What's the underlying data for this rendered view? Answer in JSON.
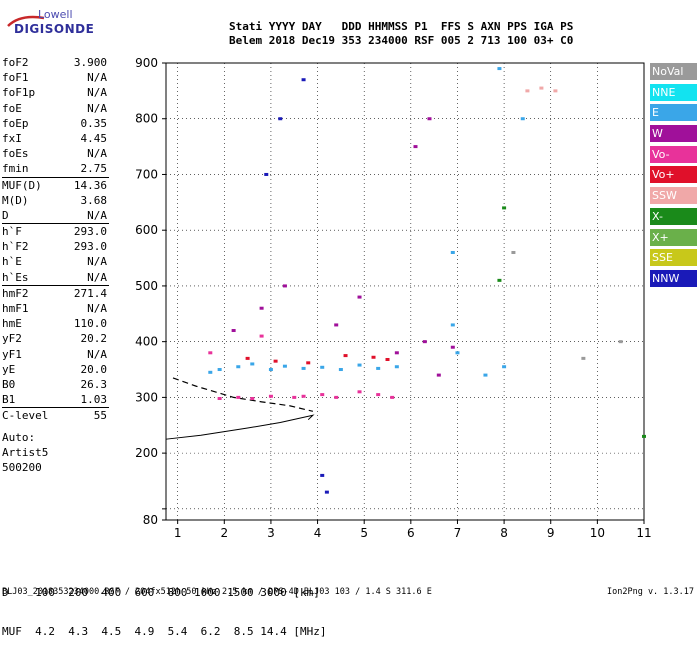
{
  "logo": {
    "top": "Lowell",
    "main": "DIGISONDE"
  },
  "header": {
    "line1": "Stati YYYY DAY   DDD HHMMSS P1  FFS S AXN PPS IGA PS",
    "line2": "Belem 2018 Dec19 353 234000 RSF 005 2 713 100 03+ C0"
  },
  "params": [
    {
      "label": "foF2",
      "value": "3.900"
    },
    {
      "label": "foF1",
      "value": "N/A"
    },
    {
      "label": "foF1p",
      "value": "N/A"
    },
    {
      "label": "foE",
      "value": "N/A"
    },
    {
      "label": "foEp",
      "value": "0.35"
    },
    {
      "label": "fxI",
      "value": "4.45"
    },
    {
      "label": "foEs",
      "value": "N/A"
    },
    {
      "label": "fmin",
      "value": "2.75"
    },
    {
      "label": "MUF(D)",
      "value": "14.36"
    },
    {
      "label": "M(D)",
      "value": "3.68"
    },
    {
      "label": "D",
      "value": "N/A"
    },
    {
      "label": "h`F",
      "value": "293.0"
    },
    {
      "label": "h`F2",
      "value": "293.0"
    },
    {
      "label": "h`E",
      "value": "N/A"
    },
    {
      "label": "h`Es",
      "value": "N/A"
    },
    {
      "label": "hmF2",
      "value": "271.4"
    },
    {
      "label": "hmF1",
      "value": "N/A"
    },
    {
      "label": "hmE",
      "value": "110.0"
    },
    {
      "label": "yF2",
      "value": "20.2"
    },
    {
      "label": "yF1",
      "value": "N/A"
    },
    {
      "label": "yE",
      "value": "20.0"
    },
    {
      "label": "B0",
      "value": "26.3"
    },
    {
      "label": "B1",
      "value": "1.03"
    },
    {
      "label": "C-level",
      "value": "55"
    }
  ],
  "auto": {
    "line1": "Auto:",
    "line2": "Artist5",
    "line3": "500200"
  },
  "legend": [
    {
      "label": "NoVal",
      "color": "#9a9a9a"
    },
    {
      "label": "NNE",
      "color": "#12e3f0"
    },
    {
      "label": "E",
      "color": "#3aa6e8"
    },
    {
      "label": "W",
      "color": "#a0109a"
    },
    {
      "label": "Vo-",
      "color": "#e8329a"
    },
    {
      "label": "Vo+",
      "color": "#e0102a"
    },
    {
      "label": "SSW",
      "color": "#f0a8a8"
    },
    {
      "label": "X-",
      "color": "#1a8a1a"
    },
    {
      "label": "X+",
      "color": "#6ab04a"
    },
    {
      "label": "SSE",
      "color": "#c8c81a"
    },
    {
      "label": "NNW",
      "color": "#1a1ab8"
    }
  ],
  "muf_table": {
    "d_line": "D    100  200  400  600  800 1000 1500 3000 [km]",
    "muf_line": "MUF  4.2  4.3  4.5  4.9  5.4  6.2  8.5 14.4 [MHz]"
  },
  "footer": {
    "left": "BLJ03_2018353234000.RSF / 204fx512h 50 kHz 2.5 km / DPS-4D BLJ03 103 / 1.4 S 311.6 E",
    "right": "Ion2Png v. 1.3.17"
  },
  "chart_data": {
    "type": "scatter",
    "title": "",
    "xlabel": "",
    "ylabel": "",
    "xlim": [
      0.75,
      11
    ],
    "ylim": [
      80,
      900
    ],
    "x_ticks": [
      1,
      2,
      3,
      4,
      5,
      6,
      7,
      8,
      9,
      10,
      11
    ],
    "y_ticks": [
      80,
      100,
      200,
      300,
      400,
      500,
      600,
      700,
      800,
      900
    ],
    "y_tick_labels": [
      "80",
      "",
      "200",
      "300",
      "400",
      "500",
      "600",
      "700",
      "800",
      "900"
    ],
    "grid": true,
    "series": [
      {
        "name": "profile",
        "values": [
          [
            0.75,
            225
          ],
          [
            1.5,
            232
          ],
          [
            2.5,
            245
          ],
          [
            3.2,
            255
          ],
          [
            3.9,
            268
          ],
          [
            3.8,
            260
          ]
        ]
      },
      {
        "name": "trace",
        "values": [
          [
            0.9,
            335
          ],
          [
            1.4,
            320
          ],
          [
            2.2,
            300
          ],
          [
            2.8,
            292
          ],
          [
            3.4,
            285
          ],
          [
            3.9,
            275
          ]
        ]
      },
      {
        "name": "E",
        "values": [
          [
            1.7,
            345
          ],
          [
            1.9,
            350
          ],
          [
            2.3,
            355
          ],
          [
            2.6,
            360
          ],
          [
            3.0,
            350
          ],
          [
            3.3,
            356
          ],
          [
            3.7,
            352
          ],
          [
            4.1,
            354
          ],
          [
            4.5,
            350
          ],
          [
            4.9,
            358
          ],
          [
            5.3,
            352
          ],
          [
            5.7,
            355
          ],
          [
            6.9,
            430
          ],
          [
            7.0,
            380
          ],
          [
            7.6,
            340
          ],
          [
            8.0,
            355
          ],
          [
            6.9,
            560
          ],
          [
            7.9,
            890
          ],
          [
            8.4,
            800
          ]
        ]
      },
      {
        "name": "Vo-",
        "values": [
          [
            1.9,
            298
          ],
          [
            2.3,
            300
          ],
          [
            2.6,
            298
          ],
          [
            3.0,
            302
          ],
          [
            3.5,
            300
          ],
          [
            3.7,
            302
          ],
          [
            4.1,
            305
          ],
          [
            4.4,
            300
          ],
          [
            4.9,
            310
          ],
          [
            5.3,
            305
          ],
          [
            5.6,
            300
          ],
          [
            1.7,
            380
          ],
          [
            2.8,
            410
          ]
        ]
      },
      {
        "name": "W",
        "values": [
          [
            2.2,
            420
          ],
          [
            2.8,
            460
          ],
          [
            3.3,
            500
          ],
          [
            4.4,
            430
          ],
          [
            4.9,
            480
          ],
          [
            5.7,
            380
          ],
          [
            6.3,
            400
          ],
          [
            6.6,
            340
          ],
          [
            6.9,
            390
          ],
          [
            6.1,
            750
          ],
          [
            6.4,
            800
          ]
        ]
      },
      {
        "name": "Vo+",
        "values": [
          [
            2.5,
            370
          ],
          [
            3.1,
            365
          ],
          [
            3.8,
            362
          ],
          [
            4.6,
            375
          ],
          [
            5.2,
            372
          ],
          [
            5.5,
            368
          ]
        ]
      },
      {
        "name": "SSW",
        "values": [
          [
            8.5,
            850
          ],
          [
            8.8,
            855
          ],
          [
            9.1,
            850
          ]
        ]
      },
      {
        "name": "NNW",
        "values": [
          [
            3.7,
            870
          ],
          [
            3.2,
            800
          ],
          [
            2.9,
            700
          ],
          [
            4.1,
            160
          ],
          [
            4.2,
            130
          ]
        ]
      },
      {
        "name": "X-",
        "values": [
          [
            8.0,
            640
          ],
          [
            7.9,
            510
          ],
          [
            11.0,
            230
          ]
        ]
      },
      {
        "name": "NoVal",
        "values": [
          [
            8.2,
            560
          ],
          [
            9.7,
            370
          ],
          [
            10.5,
            400
          ]
        ]
      }
    ]
  }
}
